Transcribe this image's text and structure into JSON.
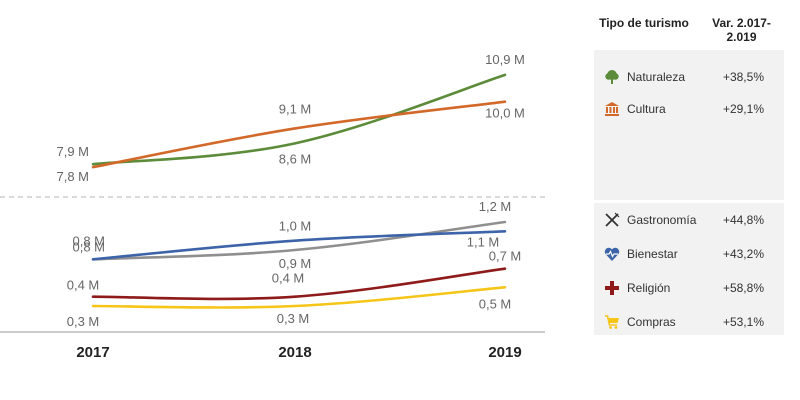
{
  "chart_data": {
    "type": "line",
    "x": [
      "2017",
      "2018",
      "2019"
    ],
    "panels": [
      {
        "name": "top",
        "ylim": [
          7.2,
          11.4
        ],
        "series": [
          {
            "name": "Naturaleza",
            "color": "#5c8b3a",
            "values": [
              7.9,
              8.6,
              10.9
            ],
            "labels": [
              "7,9 M",
              "8,6 M",
              "10,9 M"
            ]
          },
          {
            "name": "Cultura",
            "color": "#d2692a",
            "values": [
              7.8,
              9.1,
              10.0
            ],
            "labels": [
              "7,8 M",
              "9,1 M",
              "10,0 M"
            ]
          }
        ]
      },
      {
        "name": "bottom",
        "ylim": [
          0.15,
          1.35
        ],
        "series": [
          {
            "name": "Gastronomía",
            "color": "#8f8f8f",
            "values": [
              0.8,
              0.9,
              1.2
            ],
            "labels": [
              "0,8 M",
              "0,9 M",
              "1,2 M"
            ]
          },
          {
            "name": "Bienestar",
            "color": "#3d63a8",
            "values": [
              0.8,
              1.0,
              1.1
            ],
            "labels": [
              "0,8 M",
              "1,0 M",
              "1,1 M"
            ]
          },
          {
            "name": "Religión",
            "color": "#8e1a1a",
            "values": [
              0.4,
              0.4,
              0.7
            ],
            "labels": [
              "0,4 M",
              "0,4 M",
              "0,7 M"
            ]
          },
          {
            "name": "Compras",
            "color": "#f5c518",
            "values": [
              0.3,
              0.3,
              0.5
            ],
            "labels": [
              "0,3 M",
              "0,3 M",
              "0,5 M"
            ]
          }
        ]
      }
    ]
  },
  "table": {
    "header_type": "Tipo de turismo",
    "header_var": "Var. 2.017-2.019",
    "rows": [
      {
        "name": "Naturaleza",
        "var": "+38,5%",
        "icon": "tree-icon",
        "color": "#5c8b3a"
      },
      {
        "name": "Cultura",
        "var": "+29,1%",
        "icon": "museum-icon",
        "color": "#d2692a"
      },
      {
        "name": "Gastronomía",
        "var": "+44,8%",
        "icon": "fork-knife-icon",
        "color": "#333333"
      },
      {
        "name": "Bienestar",
        "var": "+43,2%",
        "icon": "heart-pulse-icon",
        "color": "#3d63a8"
      },
      {
        "name": "Religión",
        "var": "+58,8%",
        "icon": "cross-icon",
        "color": "#8e1a1a"
      },
      {
        "name": "Compras",
        "var": "+53,1%",
        "icon": "cart-icon",
        "color": "#f5c518"
      }
    ]
  }
}
